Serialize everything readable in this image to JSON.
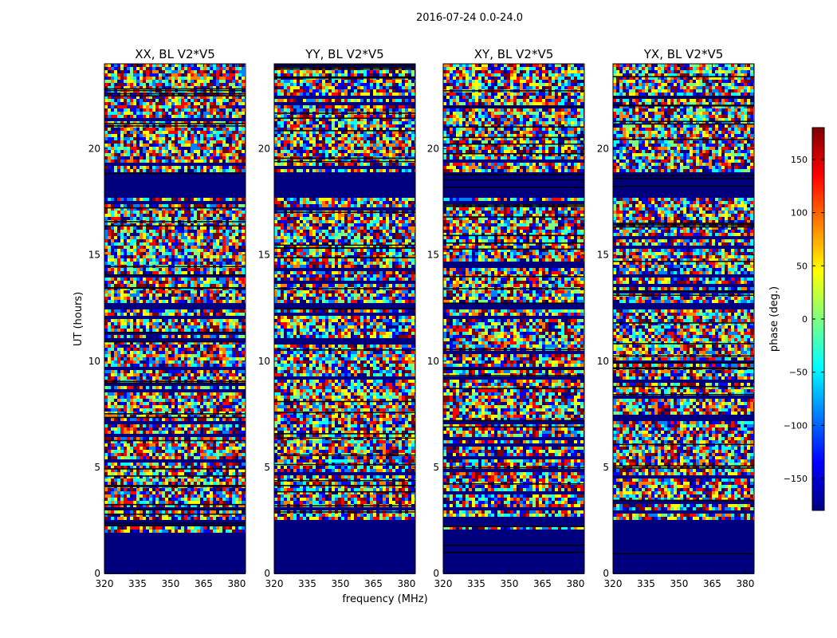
{
  "figure": {
    "suptitle": "2016-07-24 0.0-24.0",
    "ylabel": "UT (hours)",
    "xlabel": "frequency (MHz)"
  },
  "chart_data": {
    "type": "heatmap",
    "title": "2016-07-24 0.0-24.0",
    "xlabel": "frequency (MHz)",
    "ylabel": "UT (hours)",
    "xlim": [
      320,
      384
    ],
    "ylim": [
      0,
      24
    ],
    "xticks": [
      320,
      335,
      350,
      365,
      380
    ],
    "yticks": [
      0,
      5,
      10,
      15,
      20
    ],
    "panels": [
      {
        "title": "XX, BL V2*V5"
      },
      {
        "title": "YY, BL V2*V5"
      },
      {
        "title": "XY, BL V2*V5"
      },
      {
        "title": "YX, BL V2*V5"
      }
    ],
    "colorbar": {
      "label": "phase (deg.)",
      "range": [
        -180,
        180
      ],
      "ticks": [
        -150,
        -100,
        -50,
        0,
        50,
        100,
        150
      ],
      "tick_labels": [
        "−150",
        "−100",
        "−50",
        "0",
        "50",
        "100",
        "150"
      ],
      "colormap": "jet"
    },
    "flagged_bands_hours": [
      [
        0.0,
        2.0
      ],
      [
        17.8,
        19.0
      ],
      [
        12.5,
        12.8
      ],
      [
        2.3,
        2.6
      ]
    ]
  },
  "colors": {
    "flagged": "#00007f",
    "jet": [
      "#00007f",
      "#0000ff",
      "#007fff",
      "#00ffff",
      "#7fff7f",
      "#ffff00",
      "#ff7f00",
      "#ff0000",
      "#7f0000"
    ]
  }
}
